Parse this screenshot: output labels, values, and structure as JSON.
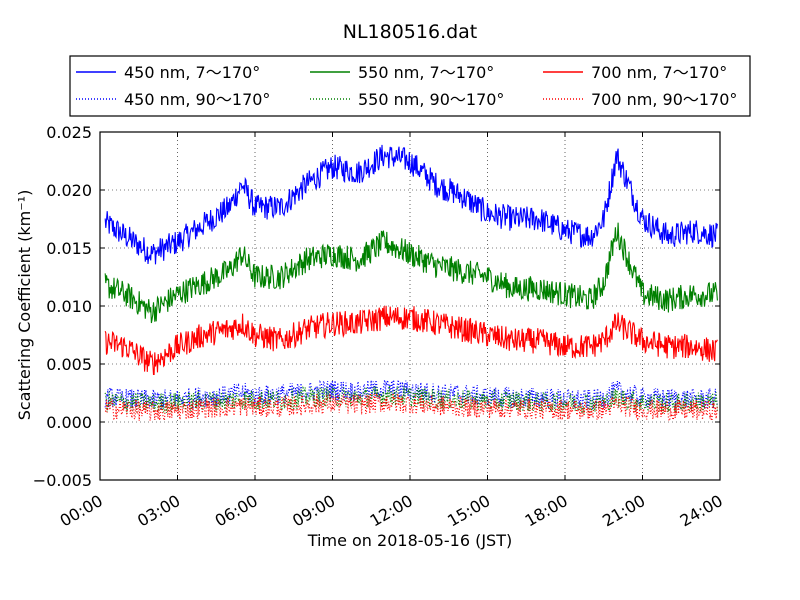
{
  "chart_data": {
    "type": "line",
    "title": "NL180516.dat",
    "xlabel": "Time on 2018-05-16 (JST)",
    "ylabel": "Scattering Coefficient (km⁻¹)",
    "xlim": [
      "00:00",
      "24:00"
    ],
    "ylim": [
      -0.005,
      0.025
    ],
    "x_ticks": [
      "00:00",
      "03:00",
      "06:00",
      "09:00",
      "12:00",
      "15:00",
      "18:00",
      "21:00",
      "24:00"
    ],
    "y_ticks": [
      "−0.005",
      "0.000",
      "0.005",
      "0.010",
      "0.015",
      "0.020",
      "0.025"
    ],
    "grid": true,
    "legend_position": "top",
    "x_hours": [
      0,
      1,
      2,
      3,
      4,
      5,
      5.5,
      6,
      7,
      8,
      9,
      10,
      11,
      12,
      13,
      14,
      15,
      16,
      17,
      18,
      19,
      19.5,
      20,
      21,
      22,
      23,
      24
    ],
    "series": [
      {
        "name": "450 nm, 7～170°",
        "color": "#0000ff",
        "style": "solid",
        "values": [
          0.0175,
          0.016,
          0.0145,
          0.0155,
          0.017,
          0.0185,
          0.0205,
          0.0185,
          0.0185,
          0.0205,
          0.022,
          0.0215,
          0.023,
          0.0225,
          0.0205,
          0.0195,
          0.018,
          0.0175,
          0.0175,
          0.0165,
          0.016,
          0.0175,
          0.023,
          0.0175,
          0.016,
          0.0165,
          0.016
        ]
      },
      {
        "name": "550 nm, 7～170°",
        "color": "#008000",
        "style": "solid",
        "values": [
          0.012,
          0.011,
          0.0095,
          0.011,
          0.012,
          0.013,
          0.0145,
          0.0125,
          0.0125,
          0.014,
          0.0145,
          0.014,
          0.0155,
          0.0145,
          0.0135,
          0.013,
          0.0125,
          0.0115,
          0.0115,
          0.011,
          0.0105,
          0.012,
          0.0165,
          0.011,
          0.0105,
          0.011,
          0.011
        ]
      },
      {
        "name": "700 nm, 7～170°",
        "color": "#ff0000",
        "style": "solid",
        "values": [
          0.007,
          0.0065,
          0.005,
          0.0065,
          0.0075,
          0.008,
          0.0085,
          0.0075,
          0.007,
          0.008,
          0.0085,
          0.0085,
          0.009,
          0.009,
          0.0085,
          0.008,
          0.0075,
          0.007,
          0.007,
          0.0065,
          0.0065,
          0.007,
          0.0085,
          0.007,
          0.0065,
          0.0065,
          0.006
        ]
      },
      {
        "name": "450 nm, 90～170°",
        "color": "#0000ff",
        "style": "dotted",
        "values": [
          0.0022,
          0.002,
          0.0019,
          0.002,
          0.0022,
          0.0023,
          0.0025,
          0.0023,
          0.0024,
          0.0026,
          0.0028,
          0.0026,
          0.0029,
          0.0027,
          0.0025,
          0.0024,
          0.0022,
          0.0021,
          0.0021,
          0.002,
          0.0019,
          0.0021,
          0.0027,
          0.0021,
          0.002,
          0.002,
          0.002
        ]
      },
      {
        "name": "550 nm, 90～170°",
        "color": "#008000",
        "style": "dotted",
        "values": [
          0.0018,
          0.0017,
          0.0016,
          0.0017,
          0.0018,
          0.0019,
          0.002,
          0.0019,
          0.0019,
          0.0021,
          0.0022,
          0.0021,
          0.0023,
          0.0022,
          0.002,
          0.0019,
          0.0018,
          0.0018,
          0.0017,
          0.0017,
          0.0016,
          0.0017,
          0.0021,
          0.0017,
          0.0016,
          0.0017,
          0.0017
        ]
      },
      {
        "name": "700 nm, 90～170°",
        "color": "#ff0000",
        "style": "dotted",
        "values": [
          0.0012,
          0.0011,
          0.0009,
          0.001,
          0.0012,
          0.0013,
          0.0014,
          0.0013,
          0.0013,
          0.0015,
          0.0016,
          0.0015,
          0.0017,
          0.0016,
          0.0014,
          0.0013,
          0.0012,
          0.0012,
          0.0011,
          0.0011,
          0.001,
          0.0011,
          0.0015,
          0.0011,
          0.001,
          0.001,
          0.001
        ]
      }
    ]
  }
}
